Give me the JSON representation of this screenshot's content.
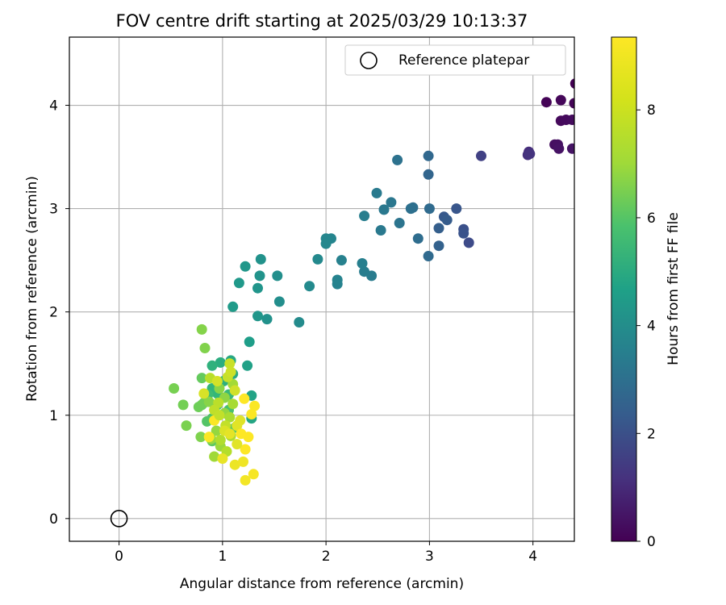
{
  "chart_data": {
    "type": "scatter",
    "title": "FOV centre drift starting at 2025/03/29 10:13:37",
    "xlabel": "Angular distance from reference (arcmin)",
    "ylabel": "Rotation from reference (arcmin)",
    "xlim": [
      -0.48,
      4.4
    ],
    "ylim": [
      -0.22,
      4.66
    ],
    "xticks": [
      0,
      1,
      2,
      3,
      4
    ],
    "yticks": [
      0,
      1,
      2,
      3,
      4
    ],
    "grid": true,
    "legend": {
      "position": "top-right",
      "entries": [
        "Reference platepar"
      ]
    },
    "reference_point": {
      "x": 0,
      "y": 0,
      "label": "Reference platepar"
    },
    "colorbar": {
      "label": "Hours from first FF file",
      "colormap": "viridis",
      "range": [
        0,
        9.35
      ],
      "ticks": [
        0,
        2,
        4,
        6,
        8
      ]
    },
    "series": [
      {
        "points": [
          [
            4.41,
            4.21,
            0.0
          ],
          [
            4.13,
            4.03,
            0.05
          ],
          [
            4.4,
            4.02,
            0.1
          ],
          [
            4.27,
            4.05,
            0.15
          ],
          [
            4.27,
            3.85,
            0.2
          ],
          [
            4.32,
            3.86,
            0.25
          ],
          [
            4.38,
            3.86,
            0.3
          ],
          [
            4.21,
            3.62,
            0.35
          ],
          [
            4.24,
            3.62,
            0.4
          ],
          [
            4.25,
            3.58,
            0.45
          ],
          [
            4.38,
            3.58,
            0.5
          ],
          [
            3.96,
            3.55,
            1.2
          ],
          [
            3.95,
            3.52,
            1.3
          ],
          [
            3.97,
            3.53,
            1.4
          ],
          [
            3.5,
            3.51,
            1.8
          ],
          [
            3.38,
            2.67,
            2.1
          ],
          [
            3.33,
            2.8,
            2.3
          ],
          [
            3.33,
            2.76,
            2.4
          ],
          [
            3.26,
            3.0,
            2.5
          ],
          [
            3.14,
            2.92,
            2.6
          ],
          [
            3.17,
            2.89,
            2.7
          ],
          [
            3.09,
            2.81,
            2.8
          ],
          [
            3.09,
            2.64,
            2.9
          ],
          [
            2.99,
            3.33,
            3.0
          ],
          [
            2.99,
            3.51,
            3.1
          ],
          [
            2.99,
            2.54,
            3.2
          ],
          [
            3.0,
            3.0,
            3.25
          ],
          [
            2.89,
            2.71,
            3.3
          ],
          [
            2.84,
            3.01,
            3.4
          ],
          [
            2.82,
            3.0,
            3.45
          ],
          [
            2.69,
            3.47,
            3.5
          ],
          [
            2.71,
            2.86,
            3.6
          ],
          [
            2.63,
            3.06,
            3.7
          ],
          [
            2.56,
            2.99,
            3.75
          ],
          [
            2.53,
            2.79,
            3.8
          ],
          [
            2.49,
            3.15,
            3.85
          ],
          [
            2.44,
            2.35,
            3.9
          ],
          [
            2.37,
            2.39,
            3.95
          ],
          [
            2.37,
            2.93,
            4.0
          ],
          [
            2.35,
            2.47,
            4.05
          ],
          [
            2.15,
            2.5,
            4.1
          ],
          [
            2.11,
            2.27,
            4.15
          ],
          [
            2.11,
            2.31,
            4.2
          ],
          [
            2.05,
            2.71,
            4.25
          ],
          [
            2.0,
            2.71,
            4.3
          ],
          [
            2.0,
            2.66,
            4.35
          ],
          [
            1.92,
            2.51,
            4.4
          ],
          [
            1.84,
            2.25,
            4.45
          ],
          [
            1.74,
            1.9,
            4.5
          ],
          [
            1.55,
            2.1,
            4.6
          ],
          [
            1.53,
            2.35,
            4.65
          ],
          [
            1.43,
            1.93,
            4.7
          ],
          [
            1.37,
            2.51,
            4.75
          ],
          [
            1.36,
            2.35,
            4.8
          ],
          [
            1.34,
            2.23,
            4.85
          ],
          [
            1.34,
            1.96,
            4.9
          ],
          [
            1.22,
            2.44,
            4.95
          ],
          [
            1.16,
            2.28,
            5.0
          ],
          [
            1.1,
            2.05,
            5.1
          ],
          [
            1.26,
            1.71,
            5.2
          ],
          [
            1.24,
            1.48,
            5.3
          ],
          [
            1.28,
            1.19,
            5.4
          ],
          [
            1.28,
            0.97,
            5.5
          ],
          [
            1.08,
            1.53,
            5.6
          ],
          [
            1.1,
            1.4,
            5.7
          ],
          [
            0.98,
            1.51,
            5.8
          ],
          [
            1.01,
            1.33,
            5.9
          ],
          [
            0.9,
            1.48,
            6.0
          ],
          [
            0.9,
            1.26,
            6.1
          ],
          [
            0.95,
            1.21,
            6.2
          ],
          [
            1.06,
            1.2,
            6.3
          ],
          [
            0.86,
            1.2,
            6.4
          ],
          [
            0.95,
            1.1,
            6.5
          ],
          [
            1.06,
            1.05,
            6.6
          ],
          [
            0.9,
            0.97,
            6.7
          ],
          [
            0.85,
            0.94,
            6.8
          ],
          [
            1.04,
            0.88,
            6.9
          ],
          [
            1.12,
            0.88,
            7.0
          ],
          [
            0.9,
            0.75,
            7.0
          ],
          [
            0.8,
            1.36,
            7.1
          ],
          [
            0.8,
            1.1,
            7.2
          ],
          [
            0.77,
            1.08,
            7.25
          ],
          [
            0.82,
            1.12,
            7.3
          ],
          [
            0.62,
            1.1,
            7.35
          ],
          [
            0.53,
            1.26,
            7.4
          ],
          [
            0.65,
            0.9,
            7.45
          ],
          [
            0.79,
            0.79,
            7.5
          ],
          [
            0.83,
            1.65,
            7.55
          ],
          [
            0.8,
            1.83,
            7.6
          ],
          [
            0.87,
            1.13,
            7.65
          ],
          [
            0.97,
            1.26,
            7.7
          ],
          [
            1.02,
            1.17,
            7.75
          ],
          [
            1.02,
            1.02,
            7.8
          ],
          [
            0.94,
            0.85,
            7.85
          ],
          [
            0.89,
            0.77,
            7.9
          ],
          [
            0.98,
            0.7,
            7.95
          ],
          [
            0.92,
            0.6,
            8.0
          ],
          [
            1.1,
            1.3,
            8.05
          ],
          [
            1.1,
            1.11,
            8.1
          ],
          [
            1.07,
            0.98,
            8.15
          ],
          [
            1.08,
            0.8,
            8.2
          ],
          [
            0.98,
            0.76,
            8.25
          ],
          [
            1.04,
            0.65,
            8.3
          ],
          [
            0.88,
            1.36,
            8.35
          ],
          [
            0.96,
            1.12,
            8.4
          ],
          [
            0.92,
            1.05,
            8.45
          ],
          [
            1.03,
            0.9,
            8.5
          ],
          [
            1.05,
            1.37,
            8.55
          ],
          [
            1.07,
            1.5,
            8.6
          ],
          [
            1.08,
            1.42,
            8.65
          ],
          [
            1.12,
            1.24,
            8.7
          ],
          [
            0.95,
            1.33,
            8.75
          ],
          [
            0.82,
            1.21,
            8.8
          ],
          [
            1.02,
            0.85,
            8.85
          ],
          [
            1.17,
            0.95,
            8.9
          ],
          [
            1.14,
            0.9,
            8.95
          ],
          [
            1.07,
            0.82,
            9.0
          ],
          [
            1.0,
            0.58,
            9.05
          ],
          [
            1.12,
            0.52,
            9.1
          ],
          [
            1.2,
            0.55,
            9.15
          ],
          [
            1.22,
            0.37,
            9.2
          ],
          [
            1.3,
            0.43,
            9.25
          ],
          [
            1.31,
            1.09,
            9.3
          ],
          [
            1.28,
            1.01,
            9.32
          ],
          [
            1.25,
            0.79,
            9.34
          ],
          [
            1.22,
            0.67,
            9.35
          ],
          [
            1.21,
            1.16,
            9.35
          ],
          [
            1.18,
            0.82,
            9.35
          ],
          [
            0.92,
            0.95,
            9.3
          ],
          [
            0.87,
            0.79,
            9.3
          ],
          [
            1.14,
            0.72,
            8.95
          ],
          [
            0.97,
            1.0,
            8.5
          ]
        ]
      }
    ]
  }
}
